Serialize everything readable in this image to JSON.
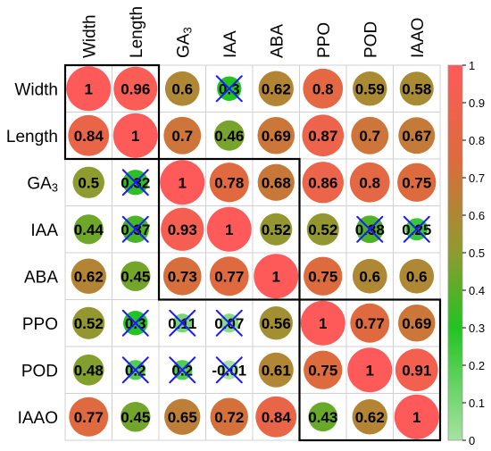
{
  "chart_data": {
    "type": "heatmap",
    "subtype": "correlation-circle-matrix",
    "title": "",
    "labels": [
      "Width",
      "Length",
      "GA3",
      "IAA",
      "ABA",
      "PPO",
      "POD",
      "IAAO"
    ],
    "label_display": [
      {
        "main": "Width",
        "sub": ""
      },
      {
        "main": "Length",
        "sub": ""
      },
      {
        "main": "GA",
        "sub": "3"
      },
      {
        "main": "IAA",
        "sub": ""
      },
      {
        "main": "ABA",
        "sub": ""
      },
      {
        "main": "PPO",
        "sub": ""
      },
      {
        "main": "POD",
        "sub": ""
      },
      {
        "main": "IAAO",
        "sub": ""
      }
    ],
    "values": [
      [
        1,
        0.96,
        0.6,
        0.3,
        0.62,
        0.8,
        0.59,
        0.58
      ],
      [
        0.84,
        1,
        0.7,
        0.46,
        0.69,
        0.87,
        0.7,
        0.67
      ],
      [
        0.5,
        0.32,
        1,
        0.78,
        0.68,
        0.86,
        0.8,
        0.75
      ],
      [
        0.44,
        0.37,
        0.93,
        1,
        0.52,
        0.52,
        0.38,
        0.25
      ],
      [
        0.62,
        0.45,
        0.73,
        0.77,
        1,
        0.75,
        0.6,
        0.6
      ],
      [
        0.52,
        0.3,
        0.11,
        0.07,
        0.56,
        1,
        0.77,
        0.69
      ],
      [
        0.48,
        0.2,
        0.2,
        -0.01,
        0.61,
        0.75,
        1,
        0.91
      ],
      [
        0.77,
        0.45,
        0.65,
        0.72,
        0.84,
        0.43,
        0.62,
        1
      ]
    ],
    "value_labels": [
      [
        "1",
        "0.96",
        "0.6",
        "0.3",
        "0.62",
        "0.8",
        "0.59",
        "0.58"
      ],
      [
        "0.84",
        "1",
        "0.7",
        "0.46",
        "0.69",
        "0.87",
        "0.7",
        "0.67"
      ],
      [
        "0.5",
        "0.32",
        "1",
        "0.78",
        "0.68",
        "0.86",
        "0.8",
        "0.75"
      ],
      [
        "0.44",
        "0.37",
        "0.93",
        "1",
        "0.52",
        "0.52",
        "0.38",
        "0.25"
      ],
      [
        "0.62",
        "0.45",
        "0.73",
        "0.77",
        "1",
        "0.75",
        "0.6",
        "0.6"
      ],
      [
        "0.52",
        "0.3",
        "0.11",
        "0.07",
        "0.56",
        "1",
        "0.77",
        "0.69"
      ],
      [
        "0.48",
        "0.2",
        "0.2",
        "-0.01",
        "0.61",
        "0.75",
        "1",
        "0.91"
      ],
      [
        "0.77",
        "0.45",
        "0.65",
        "0.72",
        "0.84",
        "0.43",
        "0.62",
        "1"
      ]
    ],
    "crossed_cells": [
      [
        0,
        3
      ],
      [
        2,
        1
      ],
      [
        3,
        1
      ],
      [
        3,
        6
      ],
      [
        3,
        7
      ],
      [
        5,
        1
      ],
      [
        5,
        2
      ],
      [
        5,
        3
      ],
      [
        6,
        1
      ],
      [
        6,
        2
      ],
      [
        6,
        3
      ]
    ],
    "clusters": [
      {
        "start": 0,
        "end": 1
      },
      {
        "start": 2,
        "end": 4
      },
      {
        "start": 5,
        "end": 7
      }
    ],
    "colorbar": {
      "range": [
        0,
        1
      ],
      "ticks": [
        "1",
        "0.9",
        "0.8",
        "0.7",
        "0.6",
        "0.5",
        "0.4",
        "0.3",
        "0.2",
        "0.1",
        "0"
      ],
      "colors": [
        "#a6e3a0",
        "#22c322",
        "#8e9b2e",
        "#dd6b3d",
        "#ff5a5a"
      ]
    },
    "grid": true
  }
}
